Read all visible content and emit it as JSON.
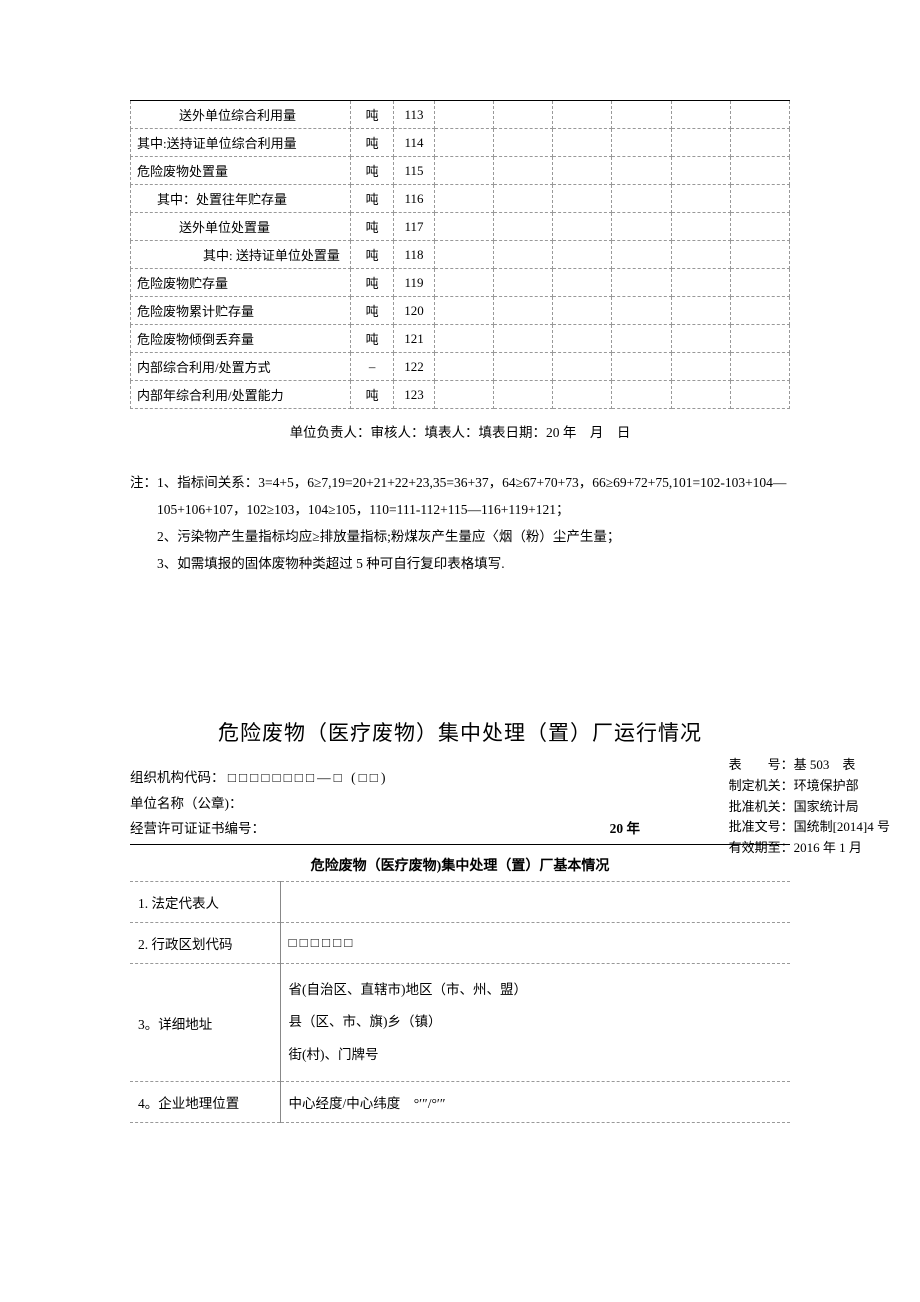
{
  "topTable": {
    "rows": [
      {
        "label": "送外单位综合利用量",
        "indent": 2,
        "unit": "吨",
        "code": "113"
      },
      {
        "label": "其中:送持证单位综合利用量",
        "indent": 0,
        "unit": "吨",
        "code": "114"
      },
      {
        "label": "危险废物处置量",
        "indent": 0,
        "unit": "吨",
        "code": "115"
      },
      {
        "label": "其中：处置往年贮存量",
        "indent": 1,
        "unit": "吨",
        "code": "116"
      },
      {
        "label": "送外单位处置量",
        "indent": 2,
        "unit": "吨",
        "code": "117"
      },
      {
        "label": "其中: 送持证单位处置量",
        "indent": 3,
        "unit": "吨",
        "code": "118"
      },
      {
        "label": "危险废物贮存量",
        "indent": 0,
        "unit": "吨",
        "code": "119"
      },
      {
        "label": "危险废物累计贮存量",
        "indent": 0,
        "unit": "吨",
        "code": "120"
      },
      {
        "label": "危险废物倾倒丢弃量",
        "indent": 0,
        "unit": "吨",
        "code": "121"
      },
      {
        "label": "内部综合利用/处置方式",
        "indent": 0,
        "unit": "–",
        "code": "122"
      },
      {
        "label": "内部年综合利用/处置能力",
        "indent": 0,
        "unit": "吨",
        "code": "123"
      }
    ],
    "dataCols": 6
  },
  "signature": "单位负责人：审核人：填表人：填表日期：20 年　月　日",
  "notes": {
    "prefix": "注：",
    "items": [
      "1、指标间关系：3=4+5，6≥7,19=20+21+22+23,35=36+37，64≥67+70+73，66≥69+72+75,101=102-103+104—105+106+107，102≥103，104≥105，110=111-112+115—116+119+121；",
      "2、污染物产生量指标均应≥排放量指标;粉煤灰产生量应〈烟（粉）尘产生量；",
      "3、如需填报的固体废物种类超过 5 种可自行复印表格填写."
    ]
  },
  "form": {
    "title": "危险废物（医疗废物）集中处理（置）厂运行情况",
    "meta": [
      "表　　号：基 503　表",
      "制定机关：环境保护部",
      "批准机关：国家统计局",
      "批准文号：国统制[2014]4 号",
      "有效期至：2016 年 1 月"
    ],
    "orgCodeLabel": "组织机构代码：",
    "orgCodeBoxes": "□□□□□□□□—□ (□□)",
    "unitNameLabel": "单位名称（公章)：",
    "licenseLabel": "经营许可证证书编号：",
    "yearLabel": "20  年",
    "subtitle": "危险废物（医疗废物)集中处理（置）厂基本情况",
    "info": [
      {
        "label": "1. 法定代表人",
        "value": ""
      },
      {
        "label": "2. 行政区划代码",
        "value": "□□□□□□",
        "boxes": true
      },
      {
        "label": "3。详细地址",
        "lines": [
          "省(自治区、直辖市)地区（市、州、盟）",
          "县（区、市、旗)乡（镇）",
          "街(村)、门牌号"
        ]
      },
      {
        "label": "4。企业地理位置",
        "value": "中心经度/中心纬度　°′″/°′″"
      }
    ]
  },
  "style": {
    "bg": "#ffffff",
    "text": "#000000",
    "fontsize": 14,
    "dash": "#999999"
  }
}
